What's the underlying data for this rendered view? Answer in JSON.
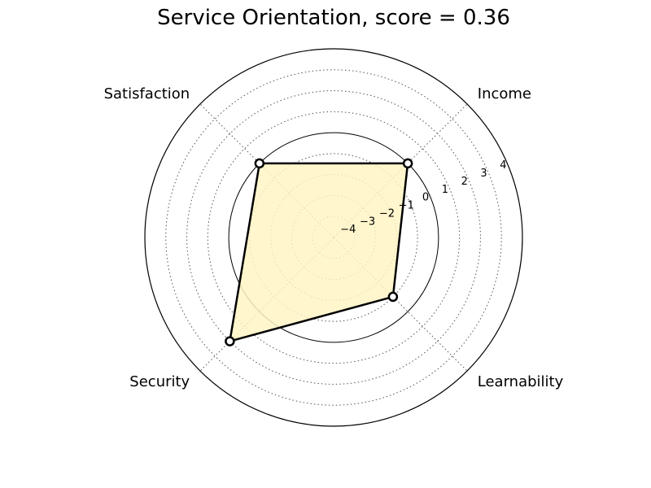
{
  "chart_data": {
    "type": "radar",
    "title": "Service Orientation, score = 0.36",
    "axes": [
      "Income",
      "Learnability",
      "Security",
      "Satisfaction"
    ],
    "values": [
      0.0,
      -1.0,
      2.0,
      0.0
    ],
    "rlim": [
      -5,
      4
    ],
    "radial_ticks": [
      -4,
      -3,
      -2,
      -1,
      0,
      1,
      2,
      3,
      4
    ],
    "radial_tick_labels": [
      "−4",
      "−3",
      "−2",
      "−1",
      "0",
      "1",
      "2",
      "3",
      "4"
    ],
    "grid": true,
    "colors": {
      "fill": "#fff5c4",
      "line": "#000000",
      "marker_face": "#ffffff",
      "grid": "#555555",
      "zero_circle": "#000000"
    }
  }
}
